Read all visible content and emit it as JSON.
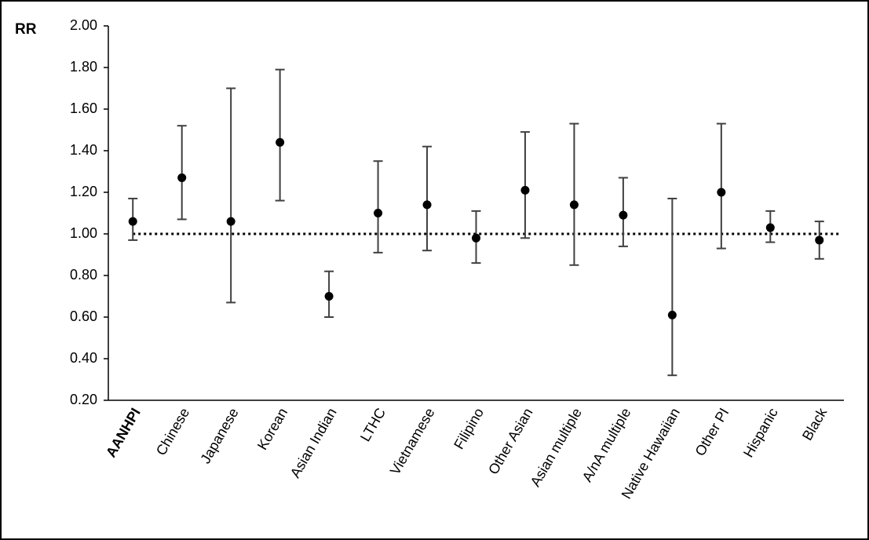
{
  "chart_data": {
    "type": "scatter",
    "ylabel": "RR",
    "ylim": [
      0.2,
      2.0
    ],
    "yticks": [
      "2.00",
      "1.80",
      "1.60",
      "1.40",
      "1.20",
      "1.00",
      "0.80",
      "0.60",
      "0.40",
      "0.20"
    ],
    "reference_line": 1.0,
    "grid": false,
    "categories": [
      "AANHPI",
      "Chinese",
      "Japanese",
      "Korean",
      "Asian Indian",
      "LTHC",
      "Vietnamese",
      "Filipino",
      "Other Asian",
      "Asian multiple",
      "A/nA multiple",
      "Native Hawaiian",
      "Other PI",
      "Hispanic",
      "Black"
    ],
    "bold_categories": [
      "AANHPI"
    ],
    "series": [
      {
        "estimate": [
          1.06,
          1.27,
          1.06,
          1.44,
          0.7,
          1.1,
          1.14,
          0.98,
          1.21,
          1.14,
          1.09,
          0.61,
          1.2,
          1.03,
          0.97
        ],
        "lower": [
          0.97,
          1.07,
          0.67,
          1.16,
          0.6,
          0.91,
          0.92,
          0.86,
          0.98,
          0.85,
          0.94,
          0.32,
          0.93,
          0.96,
          0.88
        ],
        "upper": [
          1.17,
          1.52,
          1.7,
          1.79,
          0.82,
          1.35,
          1.42,
          1.11,
          1.49,
          1.53,
          1.27,
          1.17,
          1.53,
          1.11,
          1.06
        ]
      }
    ]
  }
}
